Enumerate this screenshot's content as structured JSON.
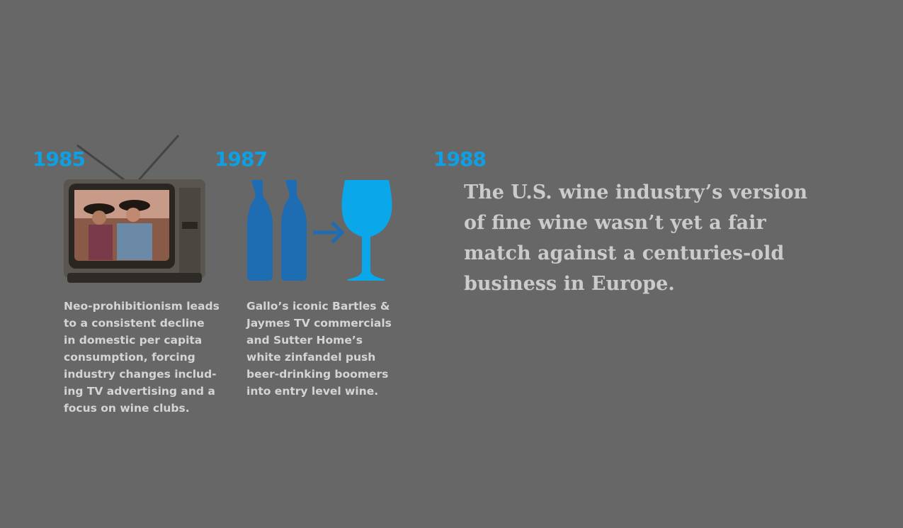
{
  "timeline": [
    {
      "year": "1985",
      "lines": [
        "Neo-prohibitionism leads",
        "to a consistent decline",
        "in domestic per capita",
        "consumption, forcing",
        "industry changes includ-",
        "ing TV advertising and a",
        "focus on wine clubs."
      ]
    },
    {
      "year": "1987",
      "lines": [
        "Gallo’s iconic Bartles &",
        "Jaymes TV commercials",
        "and Sutter Home’s",
        "white zinfandel push",
        "beer-drinking boomers",
        "into entry level wine."
      ]
    },
    {
      "year": "1988",
      "lines": [
        "The U.S. wine industry’s version",
        "of fine wine wasn’t yet a fair",
        "match against a centuries-old",
        "business in Europe."
      ]
    }
  ]
}
